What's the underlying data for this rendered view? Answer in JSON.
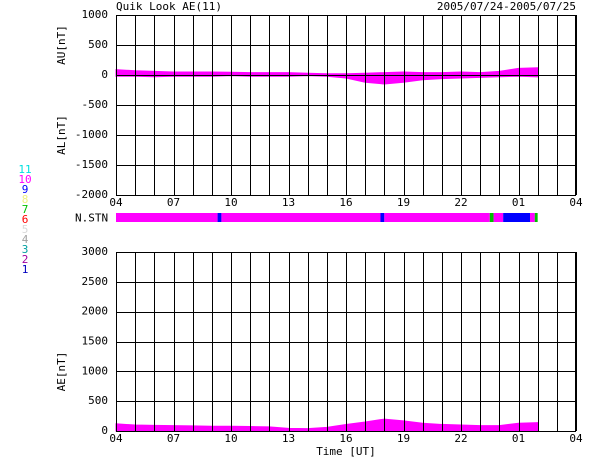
{
  "chart_data": [
    {
      "type": "area",
      "title": "Quik Look AE(11)",
      "subtitle": "2005/07/24-2005/07/25",
      "ylabels": [
        "AU[nT]",
        "AL[nT]"
      ],
      "x": [
        0,
        1,
        2,
        3,
        4,
        5,
        6,
        7,
        8,
        9,
        10,
        11,
        12,
        13,
        14,
        15,
        16,
        17,
        18,
        19,
        20,
        21,
        22
      ],
      "series": [
        {
          "name": "AU",
          "color": "#ff00ff",
          "values": [
            90,
            70,
            60,
            50,
            50,
            50,
            45,
            40,
            40,
            40,
            30,
            20,
            20,
            30,
            40,
            50,
            40,
            40,
            50,
            40,
            60,
            110,
            120
          ]
        },
        {
          "name": "AL",
          "color": "#ff00ff",
          "values": [
            -20,
            -20,
            -30,
            -20,
            -20,
            -20,
            -10,
            -20,
            -20,
            -20,
            -10,
            -20,
            -50,
            -120,
            -150,
            -120,
            -80,
            -60,
            -50,
            -40,
            -30,
            -20,
            -30
          ]
        }
      ],
      "xlim": [
        0,
        24
      ],
      "xticks": [
        {
          "value": 0,
          "label": "04"
        },
        {
          "value": 3,
          "label": "07"
        },
        {
          "value": 6,
          "label": "10"
        },
        {
          "value": 9,
          "label": "13"
        },
        {
          "value": 12,
          "label": "16"
        },
        {
          "value": 15,
          "label": "19"
        },
        {
          "value": 18,
          "label": "22"
        },
        {
          "value": 21,
          "label": "01"
        },
        {
          "value": 24,
          "label": "04"
        }
      ],
      "xgrid": [
        0,
        1,
        2,
        3,
        4,
        5,
        6,
        7,
        8,
        9,
        10,
        11,
        12,
        13,
        14,
        15,
        16,
        17,
        18,
        19,
        20,
        21,
        22,
        23,
        24
      ],
      "ylim": [
        -2000,
        1000
      ],
      "yticks": [
        -2000,
        -1500,
        -1000,
        -500,
        0,
        500,
        1000
      ],
      "grid": true
    },
    {
      "type": "station",
      "label": "N.STN",
      "segments": [
        {
          "start": 0,
          "end": 5.3,
          "n": 10
        },
        {
          "start": 5.3,
          "end": 5.5,
          "n": 9
        },
        {
          "start": 5.5,
          "end": 13.8,
          "n": 10
        },
        {
          "start": 13.8,
          "end": 14.0,
          "n": 9
        },
        {
          "start": 14.0,
          "end": 19.5,
          "n": 10
        },
        {
          "start": 19.5,
          "end": 19.7,
          "n": 7
        },
        {
          "start": 19.7,
          "end": 20.2,
          "n": 10
        },
        {
          "start": 20.2,
          "end": 21.6,
          "n": 9
        },
        {
          "start": 21.6,
          "end": 21.85,
          "n": 10
        },
        {
          "start": 21.85,
          "end": 22,
          "n": 7
        }
      ],
      "legend": {
        "values": [
          11,
          10,
          9,
          8,
          7,
          6,
          5,
          4,
          3,
          2,
          1
        ],
        "colors": [
          "#00e0e0",
          "#ff00ff",
          "#0000ff",
          "#f0f080",
          "#00c000",
          "#ff0000",
          "#d8d8d8",
          "#a0a0a0",
          "#00a0a0",
          "#a000a0",
          "#0000c0"
        ]
      },
      "xlim": [
        0,
        24
      ]
    },
    {
      "type": "area",
      "ylabels": [
        "AE[nT]"
      ],
      "xlabel": "Time [UT]",
      "x": [
        0,
        1,
        2,
        3,
        4,
        5,
        6,
        7,
        8,
        9,
        10,
        11,
        12,
        13,
        14,
        15,
        16,
        17,
        18,
        19,
        20,
        21,
        22
      ],
      "series": [
        {
          "name": "AE",
          "color": "#ff00ff",
          "values": [
            120,
            100,
            95,
            90,
            85,
            80,
            80,
            75,
            70,
            45,
            40,
            60,
            110,
            150,
            200,
            170,
            130,
            110,
            100,
            90,
            90,
            130,
            140
          ]
        }
      ],
      "xlim": [
        0,
        24
      ],
      "xticks": [
        {
          "value": 0,
          "label": "04"
        },
        {
          "value": 3,
          "label": "07"
        },
        {
          "value": 6,
          "label": "10"
        },
        {
          "value": 9,
          "label": "13"
        },
        {
          "value": 12,
          "label": "16"
        },
        {
          "value": 15,
          "label": "19"
        },
        {
          "value": 18,
          "label": "22"
        },
        {
          "value": 21,
          "label": "01"
        },
        {
          "value": 24,
          "label": "04"
        }
      ],
      "xgrid": [
        0,
        1,
        2,
        3,
        4,
        5,
        6,
        7,
        8,
        9,
        10,
        11,
        12,
        13,
        14,
        15,
        16,
        17,
        18,
        19,
        20,
        21,
        22,
        23,
        24
      ],
      "ylim": [
        0,
        3000
      ],
      "yticks": [
        0,
        500,
        1000,
        1500,
        2000,
        2500,
        3000
      ],
      "grid": true
    }
  ]
}
